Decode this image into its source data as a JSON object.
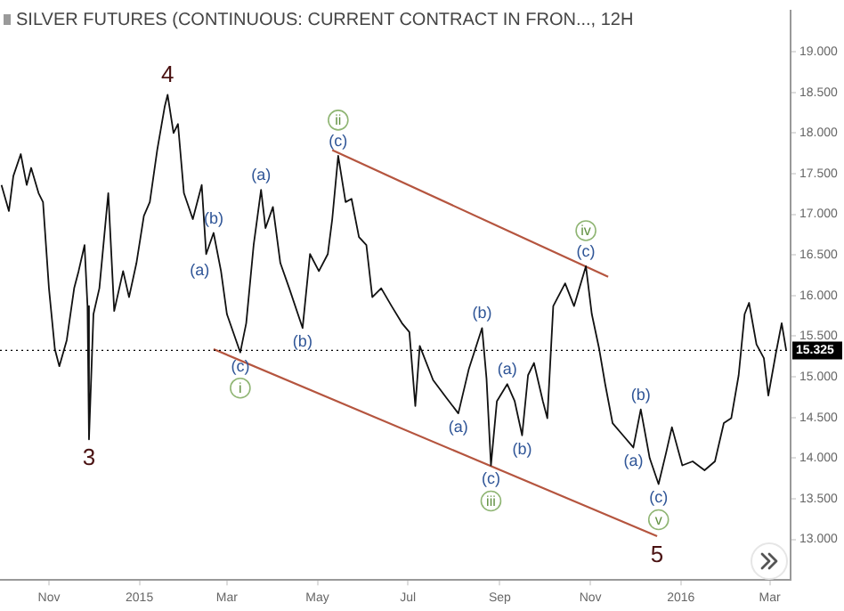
{
  "chart_data": {
    "type": "line",
    "title": "SILVER FUTURES (CONTINUOUS: CURRENT CONTRACT IN FRON..., 12H",
    "x": [
      "2014-09-30",
      "2014-10-05",
      "2014-10-08",
      "2014-10-13",
      "2014-10-17",
      "2014-10-20",
      "2014-10-25",
      "2014-10-28",
      "2014-11-01",
      "2014-11-05",
      "2014-11-08",
      "2014-11-13",
      "2014-11-18",
      "2014-11-21",
      "2014-11-25",
      "2014-11-27",
      "2014-11-28",
      "2014-12-01",
      "2014-12-05",
      "2014-12-11",
      "2014-12-15",
      "2014-12-21",
      "2014-12-25",
      "2014-12-30",
      "2015-01-04",
      "2015-01-08",
      "2015-01-13",
      "2015-01-18",
      "2015-01-20",
      "2015-01-24",
      "2015-01-27",
      "2015-01-31",
      "2015-02-06",
      "2015-02-12",
      "2015-02-15",
      "2015-02-20",
      "2015-02-25",
      "2015-03-01",
      "2015-03-10",
      "2015-03-14",
      "2015-03-19",
      "2015-03-24",
      "2015-03-27",
      "2015-04-01",
      "2015-04-06",
      "2015-04-12",
      "2015-04-21",
      "2015-04-26",
      "2015-05-02",
      "2015-05-08",
      "2015-05-11",
      "2015-05-15",
      "2015-05-20",
      "2015-05-24",
      "2015-05-29",
      "2015-06-03",
      "2015-06-07",
      "2015-06-13",
      "2015-06-20",
      "2015-06-27",
      "2015-07-02",
      "2015-07-06",
      "2015-07-09",
      "2015-07-18",
      "2015-07-27",
      "2015-08-04",
      "2015-08-11",
      "2015-08-20",
      "2015-08-23",
      "2015-08-26",
      "2015-08-30",
      "2015-09-06",
      "2015-09-11",
      "2015-09-16",
      "2015-09-20",
      "2015-09-24",
      "2015-09-30",
      "2015-10-03",
      "2015-10-07",
      "2015-10-15",
      "2015-10-21",
      "2015-10-29",
      "2015-11-02",
      "2015-11-07",
      "2015-11-11",
      "2015-11-16",
      "2015-11-23",
      "2015-11-30",
      "2015-12-05",
      "2015-12-11",
      "2015-12-17",
      "2015-12-22",
      "2015-12-26",
      "2016-01-02",
      "2016-01-09",
      "2016-01-17",
      "2016-01-24",
      "2016-01-30",
      "2016-02-04",
      "2016-02-09",
      "2016-02-13",
      "2016-02-16",
      "2016-02-21",
      "2016-02-26",
      "2016-02-29",
      "2016-03-05",
      "2016-03-09",
      "2016-03-12"
    ],
    "series": [
      {
        "color": "#111111",
        "values": [
          17.36,
          17.04,
          17.47,
          17.74,
          17.36,
          17.57,
          17.26,
          17.15,
          16.09,
          15.34,
          15.13,
          15.45,
          16.09,
          16.3,
          16.62,
          15.87,
          14.23,
          15.77,
          16.09,
          17.26,
          15.81,
          16.3,
          15.98,
          16.4,
          16.98,
          17.15,
          17.79,
          18.32,
          18.47,
          18.0,
          18.11,
          17.26,
          16.94,
          17.36,
          16.51,
          16.77,
          16.3,
          15.77,
          15.3,
          15.66,
          16.62,
          17.3,
          16.83,
          17.09,
          16.4,
          16.09,
          15.6,
          16.51,
          16.3,
          16.51,
          16.94,
          17.72,
          17.15,
          17.19,
          16.72,
          16.62,
          15.98,
          16.09,
          15.87,
          15.66,
          15.55,
          14.64,
          15.38,
          14.96,
          14.74,
          14.55,
          15.09,
          15.6,
          14.98,
          13.91,
          14.7,
          14.91,
          14.7,
          14.28,
          15.02,
          15.17,
          14.7,
          14.49,
          15.87,
          16.15,
          15.87,
          16.36,
          15.77,
          15.34,
          14.91,
          14.43,
          14.28,
          14.13,
          14.6,
          14.0,
          13.68,
          14.06,
          14.38,
          13.91,
          13.96,
          13.85,
          13.96,
          14.43,
          14.49,
          15.02,
          15.77,
          15.91,
          15.4,
          15.23,
          14.77,
          15.28,
          15.66,
          15.33
        ]
      },
      {
        "type": "line",
        "color": "#b5553f",
        "x": [
          "2015-05-11",
          "2015-11-13"
        ],
        "values": [
          17.79,
          16.23
        ]
      },
      {
        "type": "line",
        "color": "#b5553f",
        "x": [
          "2015-02-20",
          "2015-12-16"
        ],
        "values": [
          15.34,
          13.04
        ]
      }
    ],
    "xlim": [
      "2014-09-29",
      "2016-03-15"
    ],
    "xticks": [
      {
        "value": "2014-11-01",
        "label": "Nov"
      },
      {
        "value": "2015-01-01",
        "label": "2015"
      },
      {
        "value": "2015-03-01",
        "label": "Mar"
      },
      {
        "value": "2015-05-01",
        "label": "May"
      },
      {
        "value": "2015-07-01",
        "label": "Jul"
      },
      {
        "value": "2015-09-01",
        "label": "Sep"
      },
      {
        "value": "2015-11-01",
        "label": "Nov"
      },
      {
        "value": "2016-01-01",
        "label": "2016"
      },
      {
        "value": "2016-03-01",
        "label": "Mar"
      }
    ],
    "ylim": [
      12.5,
      19.5
    ],
    "yticks": [
      {
        "value": 13,
        "label": "13.000"
      },
      {
        "value": 13.5,
        "label": "13.500"
      },
      {
        "value": 14,
        "label": "14.000"
      },
      {
        "value": 14.5,
        "label": "14.500"
      },
      {
        "value": 15,
        "label": "15.000"
      },
      {
        "value": 15.5,
        "label": "15.500"
      },
      {
        "value": 16,
        "label": "16.000"
      },
      {
        "value": 16.5,
        "label": "16.500"
      },
      {
        "value": 17,
        "label": "17.000"
      },
      {
        "value": 17.5,
        "label": "17.500"
      },
      {
        "value": 18,
        "label": "18.000"
      },
      {
        "value": 18.5,
        "label": "18.500"
      },
      {
        "value": 19,
        "label": "19.000"
      }
    ],
    "ref_lines": [
      {
        "axis": "y",
        "value": 15.325,
        "label": "15.325",
        "color": "#000000",
        "line_style": "dotted"
      }
    ],
    "annotations": [
      {
        "text": "4",
        "x": "2015-01-20",
        "y": 18.47
      },
      {
        "text": "3",
        "x": "2014-11-28",
        "y": 14.23
      },
      {
        "text": "5",
        "x": "2015-12-16",
        "y": 13.04
      },
      {
        "text": "(b)",
        "x": "2015-02-20",
        "y": 16.77
      },
      {
        "text": "(a)",
        "x": "2015-02-25",
        "y": 16.3
      },
      {
        "text": "(c)",
        "x": "2015-03-10",
        "y": 15.3
      },
      {
        "text": "i",
        "x": "2015-03-10",
        "y": 15.3
      },
      {
        "text": "(a)",
        "x": "2015-03-24",
        "y": 17.3
      },
      {
        "text": "(b)",
        "x": "2015-04-21",
        "y": 15.6
      },
      {
        "text": "(c)",
        "x": "2015-05-15",
        "y": 17.72
      },
      {
        "text": "ii",
        "x": "2015-05-15",
        "y": 17.72
      },
      {
        "text": "(a)",
        "x": "2015-08-04",
        "y": 14.55
      },
      {
        "text": "(b)",
        "x": "2015-08-20",
        "y": 15.6
      },
      {
        "text": "(c)",
        "x": "2015-08-26",
        "y": 13.91
      },
      {
        "text": "iii",
        "x": "2015-08-26",
        "y": 13.91
      },
      {
        "text": "(a)",
        "x": "2015-09-06",
        "y": 14.91
      },
      {
        "text": "(b)",
        "x": "2015-09-16",
        "y": 14.28
      },
      {
        "text": "(c)",
        "x": "2015-10-29",
        "y": 16.36
      },
      {
        "text": "iv",
        "x": "2015-10-29",
        "y": 16.36
      },
      {
        "text": "(a)",
        "x": "2015-11-30",
        "y": 14.13
      },
      {
        "text": "(b)",
        "x": "2015-12-05",
        "y": 14.6
      },
      {
        "text": "(c)",
        "x": "2015-12-17",
        "y": 13.68
      },
      {
        "text": "v",
        "x": "2015-12-17",
        "y": 13.68
      }
    ],
    "grid": false,
    "legend": false,
    "marker": "none",
    "line_style": "solid"
  }
}
